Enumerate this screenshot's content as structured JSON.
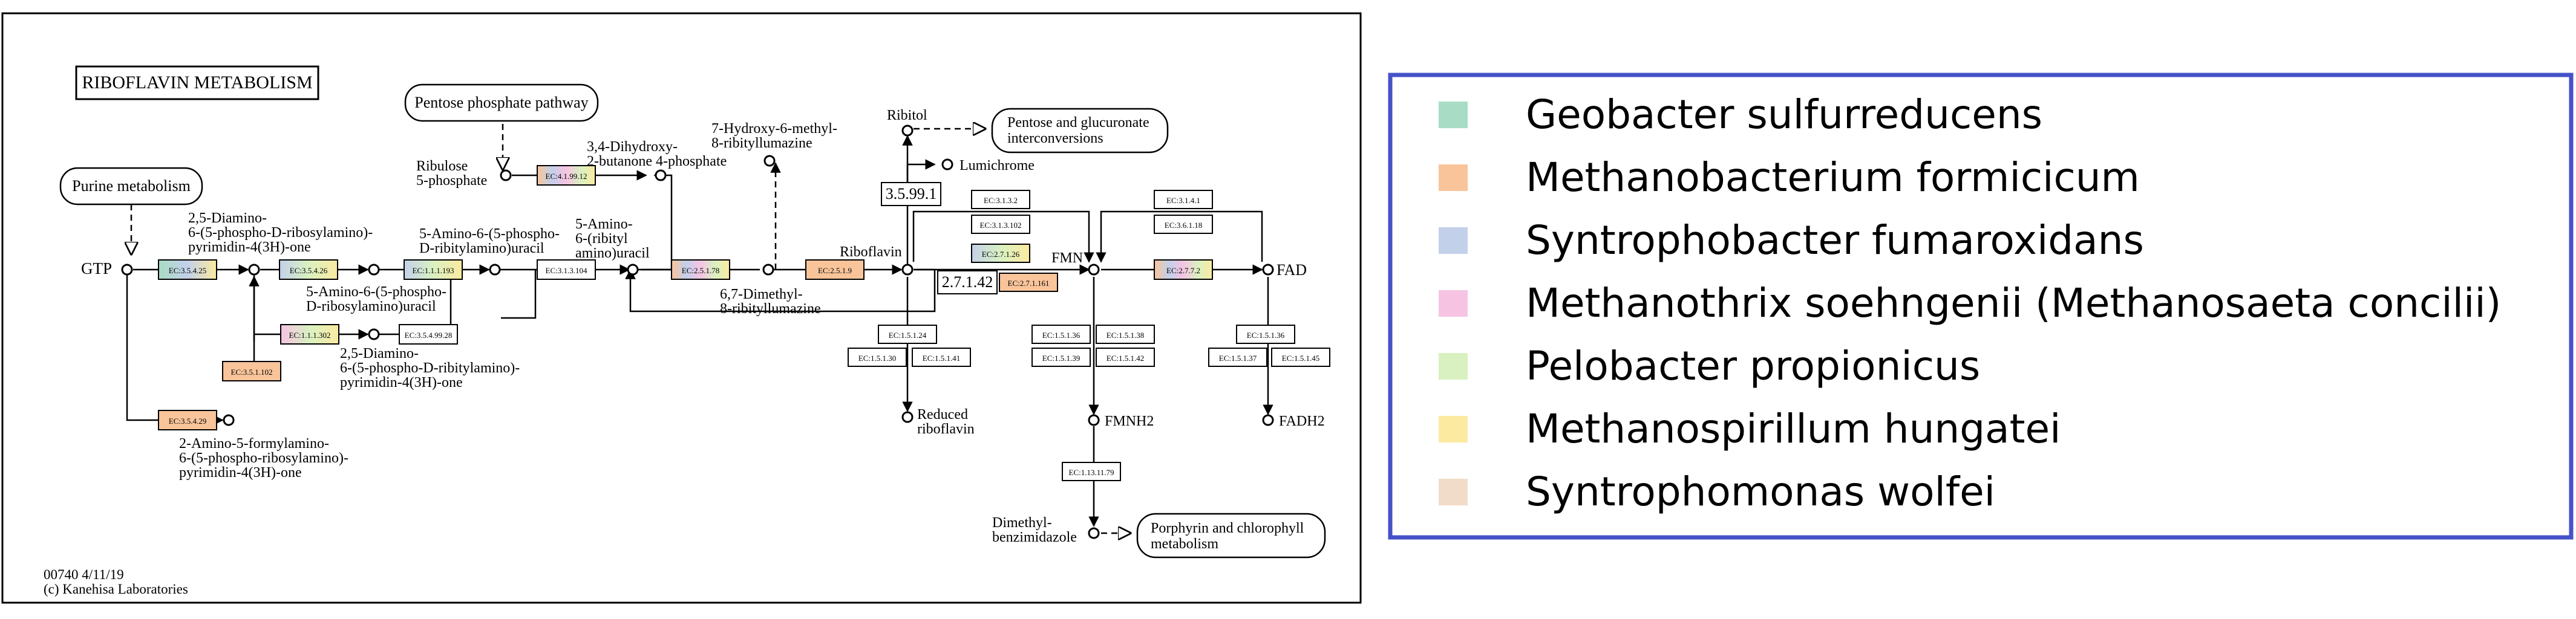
{
  "diagram": {
    "title": "RIBOFLAVIN METABOLISM",
    "footer": [
      "00740 4/11/19",
      "(c) Kanehisa Laboratories"
    ],
    "pathways": {
      "purine": "Purine metabolism",
      "pentose_phosphate": "Pentose phosphate pathway",
      "pentose_glucuronate": [
        "Pentose and glucuronate",
        "interconversions"
      ],
      "porphyrin": [
        "Porphyrin and chlorophyll",
        "metabolism"
      ]
    },
    "compounds": {
      "gtp": "GTP",
      "diamino_ribosyl": [
        "2,5-Diamino-",
        "6-(5-phospho-D-ribosylamino)-",
        "pyrimidin-4(3H)-one"
      ],
      "amino_ribosyl": [
        "5-Amino-6-(5-phospho-",
        "D-ribosylamino)uracil"
      ],
      "amino_ribityl": [
        "5-Amino-6-(5-phospho-",
        "D-ribitylamino)uracil"
      ],
      "amino_ribitylamino": [
        "5-Amino-",
        "6-(ribityl",
        "amino)uracil"
      ],
      "diamino_ribityl": [
        "2,5-Diamino-",
        "6-(5-phospho-D-ribitylamino)-",
        "pyrimidin-4(3H)-one"
      ],
      "formylamino": [
        "2-Amino-5-formylamino-",
        "6-(5-phospho-ribosylamino)-",
        "pyrimidin-4(3H)-one"
      ],
      "ribulose5p": [
        "Ribulose",
        "5-phosphate"
      ],
      "dihydroxy": [
        "3,4-Dihydroxy-",
        "2-butanone 4-phosphate"
      ],
      "hydroxy_methyl": [
        "7-Hydroxy-6-methyl-",
        "8-ribityllumazine"
      ],
      "dimethyl_lumazine": [
        "6,7-Dimethyl-",
        "8-ribityllumazine"
      ],
      "riboflavin": "Riboflavin",
      "ribitol": "Ribitol",
      "lumichrome": "Lumichrome",
      "reduced_riboflavin": [
        "Reduced",
        "riboflavin"
      ],
      "fmn": "FMN",
      "fmnh2": "FMNH2",
      "fad": "FAD",
      "fadh2": "FADH2",
      "dimethylbenzimidazole": [
        "Dimethyl-",
        "benzimidazole"
      ]
    },
    "enzymes": {
      "ec_3_5_4_25": "EC:3.5.4.25",
      "ec_3_5_4_26": "EC:3.5.4.26",
      "ec_1_1_1_193": "EC:1.1.1.193",
      "ec_3_1_3_104": "EC:3.1.3.104",
      "ec_1_1_1_302": "EC:1.1.1.302",
      "ec_3_5_4_29": "EC:3.5.4.29",
      "ec_3_5_1_102": "EC:3.5.1.102",
      "ec_3_5_4_99_28": "EC:3.5.4.99.28",
      "ec_4_1_99_12": "EC:4.1.99.12",
      "ec_2_5_1_78": "EC:2.5.1.78",
      "ec_2_5_1_9": "EC:2.5.1.9",
      "ec_3_5_99_1": "3.5.99.1",
      "ec_3_1_3_2": "EC:3.1.3.2",
      "ec_3_1_3_102": "EC:3.1.3.102",
      "ec_2_7_1_26": "EC:2.7.1.26",
      "ec_2_7_1_42": "2.7.1.42",
      "ec_2_7_1_161": "EC:2.7.1.161",
      "ec_1_5_1_24": "EC:1.5.1.24",
      "ec_1_5_1_30": "EC:1.5.1.30",
      "ec_1_5_1_41": "EC:1.5.1.41",
      "ec_1_5_1_36": "EC:1.5.1.36",
      "ec_1_5_1_38": "EC:1.5.1.38",
      "ec_1_5_1_39": "EC:1.5.1.39",
      "ec_1_5_1_42": "EC:1.5.1.42",
      "ec_1_13_11_79": "EC:1.13.11.79",
      "ec_3_1_4_1": "EC:3.1.4.1",
      "ec_3_6_1_18": "EC:3.6.1.18",
      "ec_2_7_7_2": "EC:2.7.7.2",
      "ec_1_5_1_37": "EC:1.5.1.37",
      "ec_1_5_1_45": "EC:1.5.1.45"
    }
  },
  "legend": {
    "items": [
      {
        "label": "Geobacter sulfurreducens",
        "color": "#a8dcc4"
      },
      {
        "label": "Methanobacterium formicicum",
        "color": "#f9c49a"
      },
      {
        "label": "Syntrophobacter fumaroxidans",
        "color": "#c3d0ea"
      },
      {
        "label": "Methanothrix soehngenii (Methanosaeta concilii)",
        "color": "#f6c3e3"
      },
      {
        "label": "Pelobacter propionicus",
        "color": "#d9f1c1"
      },
      {
        "label": "Methanospirillum hungatei",
        "color": "#fbeaa0"
      },
      {
        "label": "Syntrophomonas wolfei",
        "color": "#f1dcc9"
      }
    ]
  }
}
